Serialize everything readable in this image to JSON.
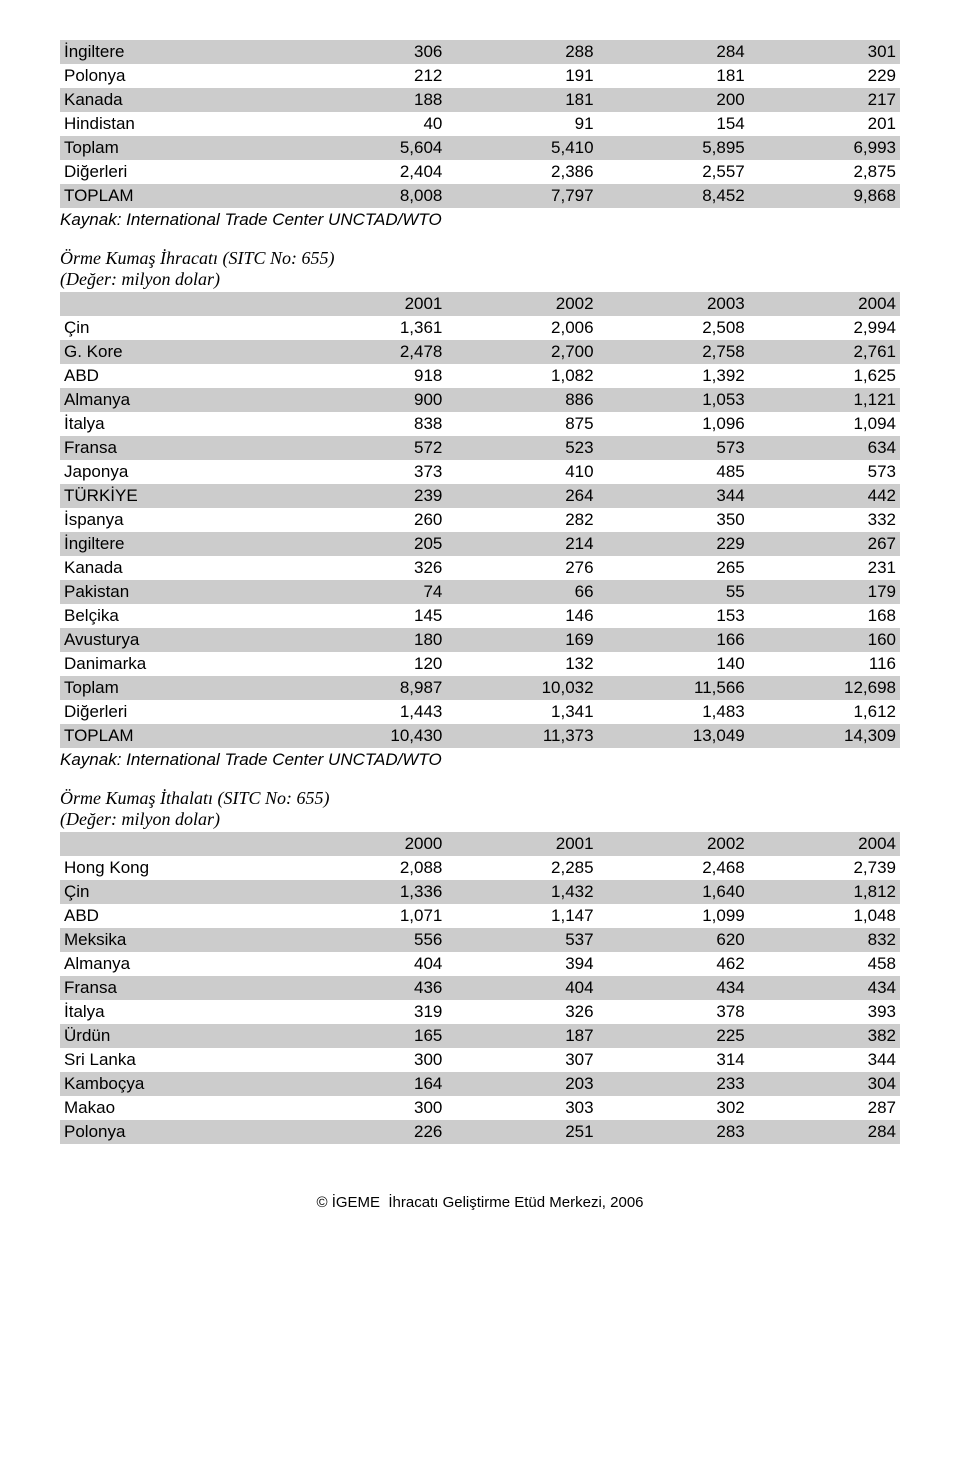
{
  "table1": {
    "rows": [
      {
        "label": "İngiltere",
        "v": [
          "306",
          "288",
          "284",
          "301"
        ],
        "shaded": true
      },
      {
        "label": "Polonya",
        "v": [
          "212",
          "191",
          "181",
          "229"
        ],
        "shaded": false
      },
      {
        "label": "Kanada",
        "v": [
          "188",
          "181",
          "200",
          "217"
        ],
        "shaded": true
      },
      {
        "label": "Hindistan",
        "v": [
          "40",
          "91",
          "154",
          "201"
        ],
        "shaded": false
      },
      {
        "label": "Toplam",
        "v": [
          "5,604",
          "5,410",
          "5,895",
          "6,993"
        ],
        "shaded": true
      },
      {
        "label": "Diğerleri",
        "v": [
          "2,404",
          "2,386",
          "2,557",
          "2,875"
        ],
        "shaded": false
      },
      {
        "label": "TOPLAM",
        "v": [
          "8,008",
          "7,797",
          "8,452",
          "9,868"
        ],
        "shaded": true
      }
    ],
    "source": "Kaynak: International Trade Center­ UNCTAD/WTO"
  },
  "table2": {
    "title": "Örme Kumaş İhracatı (SITC No: 655)",
    "subtitle": "(Değer: milyon dolar)",
    "header": [
      "",
      "2001",
      "2002",
      "2003",
      "2004"
    ],
    "rows": [
      {
        "label": "Çin",
        "v": [
          "1,361",
          "2,006",
          "2,508",
          "2,994"
        ],
        "shaded": false
      },
      {
        "label": "G. Kore",
        "v": [
          "2,478",
          "2,700",
          "2,758",
          "2,761"
        ],
        "shaded": true
      },
      {
        "label": "ABD",
        "v": [
          "918",
          "1,082",
          "1,392",
          "1,625"
        ],
        "shaded": false
      },
      {
        "label": "Almanya",
        "v": [
          "900",
          "886",
          "1,053",
          "1,121"
        ],
        "shaded": true
      },
      {
        "label": "İtalya",
        "v": [
          "838",
          "875",
          "1,096",
          "1,094"
        ],
        "shaded": false
      },
      {
        "label": "Fransa",
        "v": [
          "572",
          "523",
          "573",
          "634"
        ],
        "shaded": true
      },
      {
        "label": "Japonya",
        "v": [
          "373",
          "410",
          "485",
          "573"
        ],
        "shaded": false
      },
      {
        "label": "TÜRKİYE",
        "v": [
          "239",
          "264",
          "344",
          "442"
        ],
        "shaded": true
      },
      {
        "label": "İspanya",
        "v": [
          "260",
          "282",
          "350",
          "332"
        ],
        "shaded": false
      },
      {
        "label": "İngiltere",
        "v": [
          "205",
          "214",
          "229",
          "267"
        ],
        "shaded": true
      },
      {
        "label": "Kanada",
        "v": [
          "326",
          "276",
          "265",
          "231"
        ],
        "shaded": false
      },
      {
        "label": "Pakistan",
        "v": [
          "74",
          "66",
          "55",
          "179"
        ],
        "shaded": true
      },
      {
        "label": "Belçika",
        "v": [
          "145",
          "146",
          "153",
          "168"
        ],
        "shaded": false
      },
      {
        "label": "Avusturya",
        "v": [
          "180",
          "169",
          "166",
          "160"
        ],
        "shaded": true
      },
      {
        "label": "Danimarka",
        "v": [
          "120",
          "132",
          "140",
          "116"
        ],
        "shaded": false
      },
      {
        "label": "Toplam",
        "v": [
          "8,987",
          "10,032",
          "11,566",
          "12,698"
        ],
        "shaded": true
      },
      {
        "label": "Diğerleri",
        "v": [
          "1,443",
          "1,341",
          "1,483",
          "1,612"
        ],
        "shaded": false
      },
      {
        "label": "TOPLAM",
        "v": [
          "10,430",
          "11,373",
          "13,049",
          "14,309"
        ],
        "shaded": true
      }
    ],
    "source": "Kaynak: International Trade Center­ UNCTAD/WTO"
  },
  "table3": {
    "title": "Örme Kumaş İthalatı (SITC No: 655)",
    "subtitle": "(Değer: milyon dolar)",
    "header": [
      "",
      "2000",
      "2001",
      "2002",
      "2004"
    ],
    "rows": [
      {
        "label": "Hong Kong",
        "v": [
          "2,088",
          "2,285",
          "2,468",
          "2,739"
        ],
        "shaded": false
      },
      {
        "label": "Çin",
        "v": [
          "1,336",
          "1,432",
          "1,640",
          "1,812"
        ],
        "shaded": true
      },
      {
        "label": "ABD",
        "v": [
          "1,071",
          "1,147",
          "1,099",
          "1,048"
        ],
        "shaded": false
      },
      {
        "label": "Meksika",
        "v": [
          "556",
          "537",
          "620",
          "832"
        ],
        "shaded": true
      },
      {
        "label": "Almanya",
        "v": [
          "404",
          "394",
          "462",
          "458"
        ],
        "shaded": false
      },
      {
        "label": "Fransa",
        "v": [
          "436",
          "404",
          "434",
          "434"
        ],
        "shaded": true
      },
      {
        "label": "İtalya",
        "v": [
          "319",
          "326",
          "378",
          "393"
        ],
        "shaded": false
      },
      {
        "label": "Ürdün",
        "v": [
          "165",
          "187",
          "225",
          "382"
        ],
        "shaded": true
      },
      {
        "label": "Sri Lanka",
        "v": [
          "300",
          "307",
          "314",
          "344"
        ],
        "shaded": false
      },
      {
        "label": "Kamboçya",
        "v": [
          "164",
          "203",
          "233",
          "304"
        ],
        "shaded": true
      },
      {
        "label": "Makao",
        "v": [
          "300",
          "303",
          "302",
          "287"
        ],
        "shaded": false
      },
      {
        "label": "Polonya",
        "v": [
          "226",
          "251",
          "283",
          "284"
        ],
        "shaded": true
      }
    ]
  },
  "footer": "© İGEME ­ İhracatı Geliştirme Etüd Merkezi, 2006"
}
